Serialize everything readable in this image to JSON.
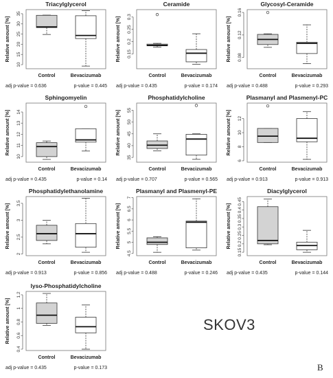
{
  "figure": {
    "cell_line_label": "SKOV3",
    "panel_letter": "B"
  },
  "chart_data": [
    {
      "type": "boxplot",
      "title": "Triacylglycerol",
      "ylabel": "Relative amount [%]",
      "ylim": [
        8,
        37
      ],
      "yticks": [
        10,
        15,
        20,
        25,
        30,
        35
      ],
      "categories": [
        "Control",
        "Bevacizumab"
      ],
      "colors": [
        "#d3d3d3",
        "#ffffff"
      ],
      "boxes": [
        {
          "name": "Control",
          "whisker_low": 24.8,
          "q1": 28.2,
          "median": 28.5,
          "q3": 34.2,
          "whisker_high": 34.3,
          "outliers": []
        },
        {
          "name": "Bevacizumab",
          "whisker_low": 9.3,
          "q1": 22.8,
          "median": 24.3,
          "q3": 34.0,
          "whisker_high": 36.5,
          "outliers": []
        }
      ],
      "p_values": [
        "adj p-value = 0.636",
        "p-value = 0.445"
      ]
    },
    {
      "type": "boxplot",
      "title": "Ceramide",
      "ylabel": "Relative amount [%]",
      "ylim": [
        0.09,
        0.33
      ],
      "yticks": [
        0.15,
        0.2,
        0.25,
        0.3
      ],
      "categories": [
        "Control",
        "Bevacizumab"
      ],
      "colors": [
        "#d3d3d3",
        "#ffffff"
      ],
      "boxes": [
        {
          "name": "Control",
          "whisker_low": 0.178,
          "q1": 0.183,
          "median": 0.185,
          "q3": 0.19,
          "whisker_high": 0.193,
          "outliers": [
            0.31
          ]
        },
        {
          "name": "Bevacizumab",
          "whisker_low": 0.108,
          "q1": 0.118,
          "median": 0.153,
          "q3": 0.168,
          "whisker_high": 0.232,
          "outliers": []
        }
      ],
      "p_values": [
        "adj p-value = 0.435",
        "p-value = 0.174"
      ]
    },
    {
      "type": "boxplot",
      "title": "Glycosyl-Ceramide",
      "ylabel": "Relative amount [%]",
      "ylim": [
        0.06,
        0.165
      ],
      "yticks": [
        0.08,
        0.12,
        0.16
      ],
      "categories": [
        "Control",
        "Bevacizumab"
      ],
      "colors": [
        "#d3d3d3",
        "#ffffff"
      ],
      "boxes": [
        {
          "name": "Control",
          "whisker_low": 0.098,
          "q1": 0.103,
          "median": 0.112,
          "q3": 0.121,
          "whisker_high": 0.122,
          "outliers": [
            0.16
          ]
        },
        {
          "name": "Bevacizumab",
          "whisker_low": 0.069,
          "q1": 0.087,
          "median": 0.105,
          "q3": 0.107,
          "whisker_high": 0.138,
          "outliers": []
        }
      ],
      "p_values": [
        "adj p-value = 0.488",
        "p-value = 0.293"
      ]
    },
    {
      "type": "boxplot",
      "title": "Sphingomyelin",
      "ylabel": "Relative amount [%]",
      "ylim": [
        9.5,
        14.8
      ],
      "yticks": [
        10,
        11,
        12,
        13,
        14
      ],
      "categories": [
        "Control",
        "Bevacizumab"
      ],
      "colors": [
        "#d3d3d3",
        "#ffffff"
      ],
      "boxes": [
        {
          "name": "Control",
          "whisker_low": 9.75,
          "q1": 10.0,
          "median": 10.9,
          "q3": 11.25,
          "whisker_high": 11.4,
          "outliers": []
        },
        {
          "name": "Bevacizumab",
          "whisker_low": 10.5,
          "q1": 11.3,
          "median": 11.5,
          "q3": 12.5,
          "whisker_high": 12.5,
          "outliers": [
            14.5
          ]
        }
      ],
      "p_values": [
        "adj p-value = 0.435",
        "p-value = 0.14"
      ]
    },
    {
      "type": "boxplot",
      "title": "Phosphatidylcholine",
      "ylabel": "Relative amount [%]",
      "ylim": [
        33,
        58
      ],
      "yticks": [
        35,
        40,
        45,
        50,
        55
      ],
      "categories": [
        "Control",
        "Bevacizumab"
      ],
      "colors": [
        "#d3d3d3",
        "#ffffff"
      ],
      "boxes": [
        {
          "name": "Control",
          "whisker_low": 37.8,
          "q1": 38.8,
          "median": 40.2,
          "q3": 42.0,
          "whisker_high": 45.0,
          "outliers": []
        },
        {
          "name": "Bevacizumab",
          "whisker_low": 34.2,
          "q1": 36.0,
          "median": 42.8,
          "q3": 44.8,
          "whisker_high": 45.0,
          "outliers": [
            57.0
          ]
        }
      ],
      "p_values": [
        "adj p-value = 0.707",
        "p-value = 0.565"
      ]
    },
    {
      "type": "boxplot",
      "title": "Plasmanyl and Plasmenyl-PC",
      "ylabel": "Relative amount [%]",
      "ylim": [
        5.8,
        14.2
      ],
      "yticks": [
        6,
        8,
        10,
        12
      ],
      "categories": [
        "Control",
        "Bevacizumab"
      ],
      "colors": [
        "#d3d3d3",
        "#ffffff"
      ],
      "boxes": [
        {
          "name": "Control",
          "whisker_low": 8.6,
          "q1": 8.6,
          "median": 9.5,
          "q3": 10.6,
          "whisker_high": 10.6,
          "outliers": [
            13.8
          ]
        },
        {
          "name": "Bevacizumab",
          "whisker_low": 6.2,
          "q1": 8.7,
          "median": 9.2,
          "q3": 12.0,
          "whisker_high": 13.0,
          "outliers": []
        }
      ],
      "p_values": [
        "adj p-value = 0.913",
        "p-value = 0.913"
      ]
    },
    {
      "type": "boxplot",
      "title": "Phosphatidylethanolamine",
      "ylabel": "Relative amount [%]",
      "ylim": [
        1.95,
        3.7
      ],
      "yticks": [
        2.0,
        2.5,
        3.0,
        3.5
      ],
      "categories": [
        "Control",
        "Bevacizumab"
      ],
      "colors": [
        "#d3d3d3",
        "#ffffff"
      ],
      "boxes": [
        {
          "name": "Control",
          "whisker_low": 2.3,
          "q1": 2.4,
          "median": 2.6,
          "q3": 2.85,
          "whisker_high": 3.0,
          "outliers": []
        },
        {
          "name": "Bevacizumab",
          "whisker_low": 2.05,
          "q1": 2.2,
          "median": 2.6,
          "q3": 2.9,
          "whisker_high": 3.65,
          "outliers": []
        }
      ],
      "p_values": [
        "adj p-value = 0.913",
        "p-value = 0.856"
      ]
    },
    {
      "type": "boxplot",
      "title": "Plasmanyl and Plasmenyl-PE",
      "ylabel": "Relative amount [%]",
      "ylim": [
        4.4,
        7.05
      ],
      "yticks": [
        4.5,
        5.0,
        5.5,
        6.0,
        6.5,
        7.0
      ],
      "categories": [
        "Control",
        "Bevacizumab"
      ],
      "colors": [
        "#d3d3d3",
        "#ffffff"
      ],
      "boxes": [
        {
          "name": "Control",
          "whisker_low": 4.55,
          "q1": 4.9,
          "median": 5.0,
          "q3": 5.2,
          "whisker_high": 5.25,
          "outliers": []
        },
        {
          "name": "Bevacizumab",
          "whisker_low": 4.65,
          "q1": 4.75,
          "median": 5.9,
          "q3": 5.95,
          "whisker_high": 6.95,
          "outliers": []
        }
      ],
      "p_values": [
        "adj p-value = 0.488",
        "p-value = 0.246"
      ]
    },
    {
      "type": "boxplot",
      "title": "Diacylglycerol",
      "ylabel": "Relative amount [%]",
      "ylim": [
        0.13,
        0.48
      ],
      "yticks": [
        0.15,
        0.2,
        0.25,
        0.3,
        0.35,
        0.4,
        0.45
      ],
      "categories": [
        "Control",
        "Bevacizumab"
      ],
      "colors": [
        "#d3d3d3",
        "#ffffff"
      ],
      "boxes": [
        {
          "name": "Control",
          "whisker_low": 0.195,
          "q1": 0.2,
          "median": 0.22,
          "q3": 0.42,
          "whisker_high": 0.465,
          "outliers": []
        },
        {
          "name": "Bevacizumab",
          "whisker_low": 0.15,
          "q1": 0.165,
          "median": 0.19,
          "q3": 0.21,
          "whisker_high": 0.28,
          "outliers": []
        }
      ],
      "p_values": [
        "adj p-value = 0.435",
        "p-value = 0.144"
      ]
    },
    {
      "type": "boxplot",
      "title": "lyso-Phosphatidylcholine",
      "ylabel": "Relative amount [%]",
      "ylim": [
        0.38,
        1.25
      ],
      "yticks": [
        0.4,
        0.6,
        0.8,
        1.0,
        1.2
      ],
      "categories": [
        "Control",
        "Bevacizumab"
      ],
      "colors": [
        "#d3d3d3",
        "#ffffff"
      ],
      "boxes": [
        {
          "name": "Control",
          "whisker_low": 0.75,
          "q1": 0.78,
          "median": 0.9,
          "q3": 1.08,
          "whisker_high": 1.22,
          "outliers": []
        },
        {
          "name": "Bevacizumab",
          "whisker_low": 0.4,
          "q1": 0.64,
          "median": 0.73,
          "q3": 0.87,
          "whisker_high": 1.05,
          "outliers": []
        }
      ],
      "p_values": [
        "adj p-value = 0.435",
        "p-value = 0.173"
      ]
    }
  ]
}
